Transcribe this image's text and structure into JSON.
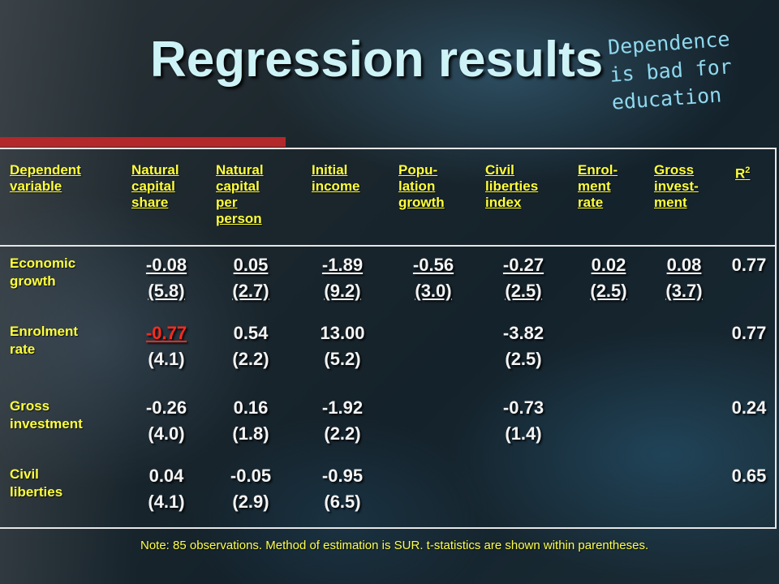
{
  "slide": {
    "title": "Regression results",
    "side_note": [
      "Dependence",
      "is bad for",
      "education"
    ],
    "footnote": "Note: 85 observations. Method of estimation is SUR. t-statistics are shown within parentheses."
  },
  "table": {
    "header_dependent": [
      "Dependent",
      "variable"
    ],
    "columns": [
      {
        "lines": [
          "Natural",
          "capital",
          "share"
        ]
      },
      {
        "lines": [
          "Natural",
          "capital",
          "per",
          "person"
        ]
      },
      {
        "lines": [
          "Initial",
          "income"
        ]
      },
      {
        "lines": [
          "Popu-",
          "lation",
          "growth"
        ]
      },
      {
        "lines": [
          "Civil",
          "liberties",
          "index"
        ]
      },
      {
        "lines": [
          "Enrol-",
          "ment",
          "rate"
        ]
      },
      {
        "lines": [
          "Gross",
          "invest-",
          "ment"
        ]
      },
      {
        "lines": [
          "R2"
        ]
      }
    ],
    "rows": [
      {
        "label": [
          "Economic",
          "growth"
        ],
        "coef": [
          "-0.08",
          "0.05",
          "-1.89",
          "-0.56",
          "-0.27",
          "0.02",
          "0.08",
          "0.77"
        ],
        "tstat": [
          "(5.8)",
          "(2.7)",
          "(9.2)",
          "(3.0)",
          "(2.5)",
          "(2.5)",
          "(3.7)",
          ""
        ]
      },
      {
        "label": [
          "Enrolment",
          "rate"
        ],
        "coef": [
          "-0.77",
          "0.54",
          "13.00",
          "",
          "-3.82",
          "",
          "",
          "0.77"
        ],
        "tstat": [
          "(4.1)",
          "(2.2)",
          "(5.2)",
          "",
          "(2.5)",
          "",
          "",
          ""
        ]
      },
      {
        "label": [
          "Gross",
          "investment"
        ],
        "coef": [
          "-0.26",
          "0.16",
          "-1.92",
          "",
          "-0.73",
          "",
          "",
          "0.24"
        ],
        "tstat": [
          "(4.0)",
          "(1.8)",
          "(2.2)",
          "",
          "(1.4)",
          "",
          "",
          ""
        ]
      },
      {
        "label": [
          "Civil",
          "liberties"
        ],
        "coef": [
          "0.04",
          "-0.05",
          "-0.95",
          "",
          "",
          "",
          "",
          "0.65"
        ],
        "tstat": [
          "(4.1)",
          "(2.9)",
          "(6.5)",
          "",
          "",
          "",
          "",
          ""
        ]
      }
    ],
    "highlight_color": "#ff2a1e",
    "header_color": "#ffff3a"
  }
}
